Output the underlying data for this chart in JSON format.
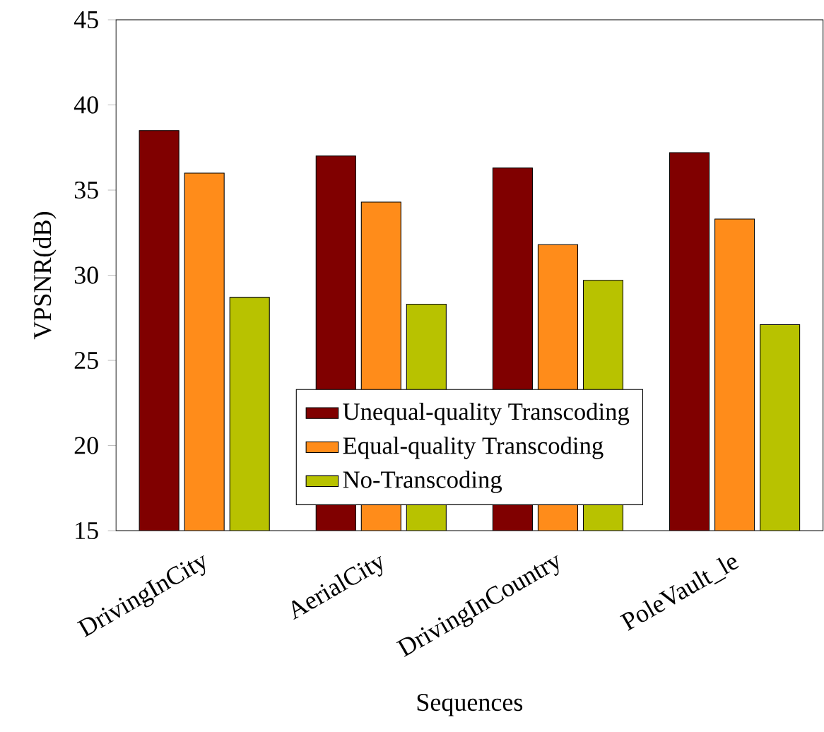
{
  "chart_data": {
    "type": "bar",
    "xlabel": "Sequences",
    "ylabel": "VPSNR(dB)",
    "categories": [
      "DrivingInCity",
      "AerialCity",
      "DrivingInCountry",
      "PoleVault_le"
    ],
    "series": [
      {
        "name": "Unequal-quality Transcoding",
        "color": "#800000",
        "values": [
          38.5,
          37.0,
          36.3,
          37.2
        ]
      },
      {
        "name": "Equal-quality Transcoding",
        "color": "#ff8c1a",
        "values": [
          36.0,
          34.3,
          31.8,
          33.3
        ]
      },
      {
        "name": "No-Transcoding",
        "color": "#b8c200",
        "values": [
          28.7,
          28.3,
          29.7,
          27.1
        ]
      }
    ],
    "ylim": [
      15,
      45
    ],
    "yticks": [
      15,
      20,
      25,
      30,
      35,
      40,
      45
    ],
    "grid": false,
    "legend": "bottom"
  }
}
